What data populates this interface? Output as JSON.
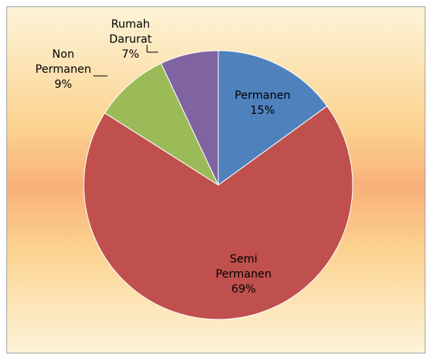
{
  "chart_data": {
    "type": "pie",
    "categories": [
      "Permanen",
      "Semi Permanen",
      "Non Permanen",
      "Rumah Darurat"
    ],
    "values": [
      15,
      69,
      9,
      7
    ],
    "value_labels": [
      "15%",
      "69%",
      "9%",
      "7%"
    ],
    "colors": [
      "#4f81bd",
      "#c0504d",
      "#9bbb59",
      "#8064a2"
    ]
  }
}
